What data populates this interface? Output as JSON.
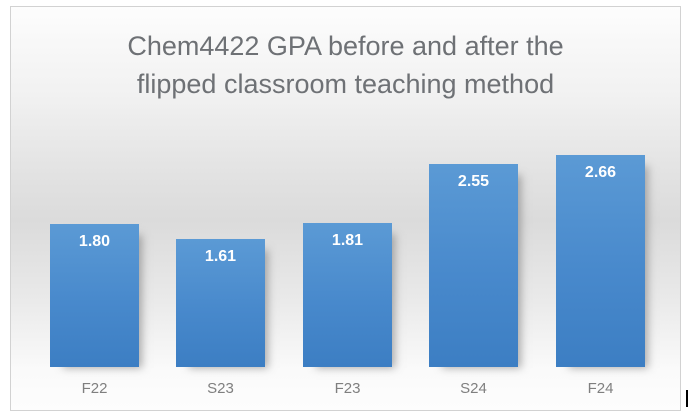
{
  "chart": {
    "title_lines": [
      "Chem4422 GPA before and after the",
      "flipped classroom teaching method"
    ]
  },
  "chart_data": {
    "type": "bar",
    "title": "Chem4422 GPA before and after the flipped classroom teaching method",
    "categories": [
      "F22",
      "S23",
      "F23",
      "S24",
      "F24"
    ],
    "values": [
      1.8,
      1.61,
      1.81,
      2.55,
      2.66
    ],
    "data_labels": [
      "1.80",
      "1.61",
      "1.81",
      "2.55",
      "2.66"
    ],
    "xlabel": "",
    "ylabel": "",
    "ylim": [
      0,
      3
    ],
    "grid": false,
    "legend": false,
    "colors": {
      "bar_top": "#5b9ad5",
      "bar_bottom": "#3c7ec3",
      "data_label": "#ffffff",
      "category_label": "#7f7f7f",
      "title": "#6e7175",
      "frame_border": "#d2d2d2"
    }
  }
}
